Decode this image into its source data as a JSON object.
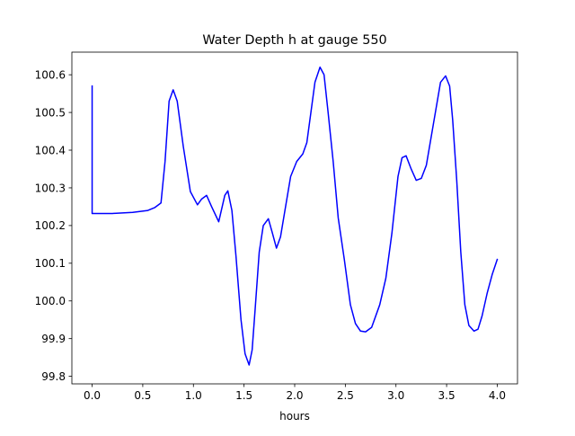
{
  "chart_data": {
    "type": "line",
    "title": "Water Depth h at gauge 550",
    "xlabel": "hours",
    "ylabel": "",
    "xlim": [
      -0.2,
      4.2
    ],
    "ylim": [
      99.78,
      100.66
    ],
    "xticks": [
      0.0,
      0.5,
      1.0,
      1.5,
      2.0,
      2.5,
      3.0,
      3.5,
      4.0
    ],
    "xtick_labels": [
      "0.0",
      "0.5",
      "1.0",
      "1.5",
      "2.0",
      "2.5",
      "3.0",
      "3.5",
      "4.0"
    ],
    "yticks": [
      99.8,
      99.9,
      100.0,
      100.1,
      100.2,
      100.3,
      100.4,
      100.5,
      100.6
    ],
    "ytick_labels": [
      "99.8",
      "99.9",
      "100.0",
      "100.1",
      "100.2",
      "100.3",
      "100.4",
      "100.5",
      "100.6"
    ],
    "grid": false,
    "series": [
      {
        "color": "#0000ff",
        "x": [
          0.0,
          0.0,
          0.0,
          0.2,
          0.4,
          0.55,
          0.62,
          0.68,
          0.72,
          0.76,
          0.8,
          0.84,
          0.9,
          0.97,
          1.04,
          1.08,
          1.13,
          1.18,
          1.25,
          1.31,
          1.34,
          1.38,
          1.42,
          1.47,
          1.51,
          1.55,
          1.58,
          1.61,
          1.65,
          1.69,
          1.74,
          1.78,
          1.82,
          1.86,
          1.91,
          1.96,
          2.02,
          2.08,
          2.12,
          2.16,
          2.2,
          2.25,
          2.29,
          2.33,
          2.38,
          2.43,
          2.49,
          2.55,
          2.6,
          2.65,
          2.7,
          2.76,
          2.84,
          2.9,
          2.96,
          3.02,
          3.06,
          3.1,
          3.15,
          3.2,
          3.25,
          3.3,
          3.37,
          3.44,
          3.49,
          3.53,
          3.56,
          3.6,
          3.64,
          3.68,
          3.72,
          3.77,
          3.81,
          3.85,
          3.9,
          3.95,
          4.0
        ],
        "y": [
          100.57,
          100.4,
          100.232,
          100.232,
          100.235,
          100.24,
          100.248,
          100.26,
          100.37,
          100.53,
          100.56,
          100.53,
          100.41,
          100.29,
          100.255,
          100.27,
          100.28,
          100.25,
          100.21,
          100.28,
          100.292,
          100.24,
          100.12,
          99.95,
          99.86,
          99.83,
          99.87,
          99.98,
          100.13,
          100.2,
          100.218,
          100.18,
          100.14,
          100.17,
          100.25,
          100.33,
          100.37,
          100.39,
          100.42,
          100.5,
          100.58,
          100.62,
          100.6,
          100.5,
          100.37,
          100.22,
          100.11,
          99.99,
          99.94,
          99.92,
          99.918,
          99.93,
          99.99,
          100.06,
          100.18,
          100.33,
          100.38,
          100.385,
          100.35,
          100.32,
          100.325,
          100.36,
          100.47,
          100.58,
          100.597,
          100.57,
          100.48,
          100.32,
          100.13,
          99.99,
          99.935,
          99.92,
          99.925,
          99.96,
          100.02,
          100.07,
          100.11
        ]
      }
    ]
  }
}
